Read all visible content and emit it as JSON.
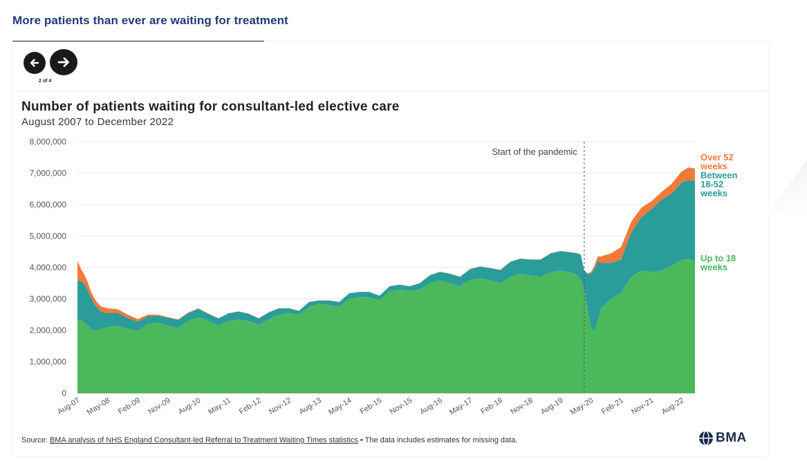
{
  "headline": "More patients than ever are waiting for treatment",
  "nav": {
    "pager": "2 of 4",
    "prev_icon": "arrow-left-icon",
    "next_icon": "arrow-right-icon"
  },
  "chart_data": {
    "type": "area",
    "stacked": true,
    "title": "Number of patients waiting for consultant-led elective care",
    "subtitle": "August 2007 to December 2022",
    "x_start": "Aug-07",
    "x_end": "Dec-22",
    "x_tick_labels": [
      "Aug-07",
      "May-08",
      "Feb-09",
      "Nov-09",
      "Aug-10",
      "May-11",
      "Feb-12",
      "Nov-12",
      "Aug-13",
      "May-14",
      "Feb-15",
      "Nov-15",
      "Aug-16",
      "May-17",
      "Feb-18",
      "Nov-18",
      "Aug-19",
      "May-20",
      "Feb-21",
      "Nov-21",
      "Aug-22"
    ],
    "y_ticks": [
      0,
      1000000,
      2000000,
      3000000,
      4000000,
      5000000,
      6000000,
      7000000,
      8000000
    ],
    "y_tick_labels": [
      "0",
      "1,000,000",
      "2,000,000",
      "3,000,000",
      "4,000,000",
      "5,000,000",
      "6,000,000",
      "7,000,000",
      "8,000,000"
    ],
    "ylim": [
      0,
      8000000
    ],
    "grid": true,
    "legend": "right, end of series",
    "annotation": {
      "label": "Start of the pandemic",
      "x": "Mar-20"
    },
    "x": [
      "Aug-07",
      "Sep-07",
      "Oct-07",
      "Nov-07",
      "Dec-07",
      "Jan-08",
      "Feb-08",
      "Mar-08",
      "May-08",
      "Aug-08",
      "Nov-08",
      "Feb-09",
      "May-09",
      "Aug-09",
      "Nov-09",
      "Feb-10",
      "May-10",
      "Aug-10",
      "Nov-10",
      "Feb-11",
      "May-11",
      "Aug-11",
      "Nov-11",
      "Feb-12",
      "May-12",
      "Aug-12",
      "Nov-12",
      "Feb-13",
      "May-13",
      "Aug-13",
      "Nov-13",
      "Feb-14",
      "May-14",
      "Aug-14",
      "Nov-14",
      "Feb-15",
      "May-15",
      "Aug-15",
      "Nov-15",
      "Feb-16",
      "May-16",
      "Aug-16",
      "Nov-16",
      "Feb-17",
      "May-17",
      "Aug-17",
      "Nov-17",
      "Feb-18",
      "May-18",
      "Aug-18",
      "Nov-18",
      "Feb-19",
      "May-19",
      "Aug-19",
      "Nov-19",
      "Jan-20",
      "Feb-20",
      "Mar-20",
      "Apr-20",
      "May-20",
      "Jun-20",
      "Jul-20",
      "Aug-20",
      "Nov-20",
      "Feb-21",
      "May-21",
      "Aug-21",
      "Nov-21",
      "Feb-22",
      "May-22",
      "Aug-22",
      "Oct-22",
      "Dec-22"
    ],
    "series": [
      {
        "name": "Up to 18 weeks",
        "color": "#4cb85c",
        "values": [
          2350000,
          2330000,
          2250000,
          2150000,
          2050000,
          2000000,
          2000000,
          2050000,
          2100000,
          2150000,
          2050000,
          1980000,
          2200000,
          2250000,
          2150000,
          2080000,
          2300000,
          2420000,
          2300000,
          2150000,
          2300000,
          2350000,
          2300000,
          2180000,
          2350000,
          2500000,
          2550000,
          2500000,
          2750000,
          2850000,
          2800000,
          2750000,
          3000000,
          3050000,
          3050000,
          2950000,
          3250000,
          3300000,
          3250000,
          3300000,
          3500000,
          3580000,
          3500000,
          3400000,
          3600000,
          3650000,
          3600000,
          3500000,
          3700000,
          3800000,
          3750000,
          3700000,
          3850000,
          3900000,
          3850000,
          3750000,
          3600000,
          3300000,
          2700000,
          2100000,
          1950000,
          2300000,
          2700000,
          3000000,
          3200000,
          3700000,
          3900000,
          3850000,
          3900000,
          4050000,
          4250000,
          4280000,
          4200000
        ]
      },
      {
        "name": "Between 18-52 weeks",
        "color": "#2a9d9b",
        "values": [
          1250000,
          1230000,
          1230000,
          1150000,
          1000000,
          850000,
          700000,
          550000,
          450000,
          400000,
          350000,
          300000,
          250000,
          220000,
          250000,
          250000,
          250000,
          270000,
          230000,
          230000,
          240000,
          250000,
          230000,
          200000,
          220000,
          200000,
          150000,
          120000,
          150000,
          100000,
          150000,
          150000,
          180000,
          170000,
          170000,
          150000,
          150000,
          150000,
          150000,
          200000,
          250000,
          280000,
          300000,
          300000,
          350000,
          380000,
          380000,
          420000,
          480000,
          480000,
          500000,
          550000,
          600000,
          620000,
          630000,
          700000,
          800000,
          600000,
          1100000,
          1700000,
          2000000,
          1900000,
          1450000,
          1150000,
          1050000,
          1400000,
          1700000,
          2000000,
          2250000,
          2300000,
          2450000,
          2500000,
          2550000
        ]
      },
      {
        "name": "Over 52 weeks",
        "color": "#f07a3a",
        "values": [
          600000,
          400000,
          300000,
          250000,
          200000,
          180000,
          170000,
          160000,
          150000,
          120000,
          100000,
          80000,
          50000,
          30000,
          20000,
          20000,
          15000,
          10000,
          5000,
          5000,
          5000,
          5000,
          5000,
          5000,
          5000,
          5000,
          5000,
          5000,
          5000,
          5000,
          5000,
          5000,
          5000,
          5000,
          5000,
          5000,
          5000,
          5000,
          5000,
          5000,
          5000,
          5000,
          5000,
          5000,
          5000,
          5000,
          5000,
          5000,
          5000,
          5000,
          5000,
          5000,
          5000,
          5000,
          5000,
          5000,
          5000,
          10000,
          20000,
          50000,
          100000,
          150000,
          200000,
          300000,
          400000,
          350000,
          300000,
          250000,
          250000,
          300000,
          350000,
          400000,
          400000
        ]
      }
    ],
    "end_labels": [
      {
        "series": "Over 52 weeks",
        "lines": [
          "Over 52",
          "weeks"
        ]
      },
      {
        "series": "Between 18-52 weeks",
        "lines": [
          "Between",
          "18-52",
          "weeks"
        ]
      },
      {
        "series": "Up to 18 weeks",
        "lines": [
          "Up to 18",
          "weeks"
        ]
      }
    ]
  },
  "footer": {
    "prefix": "Source: ",
    "link": "BMA analysis of NHS England Consultant-led Referral to Treatment Waiting Times statistics",
    "suffix": " • The data includes estimates for missing data."
  },
  "logo": {
    "text": "BMA",
    "icon": "bma-logo-icon"
  },
  "colors": {
    "headline": "#1f3b73",
    "up_to_18": "#4cb85c",
    "between_18_52": "#2a9d9b",
    "over_52": "#f07a3a",
    "logo": "#1b2a4e"
  }
}
